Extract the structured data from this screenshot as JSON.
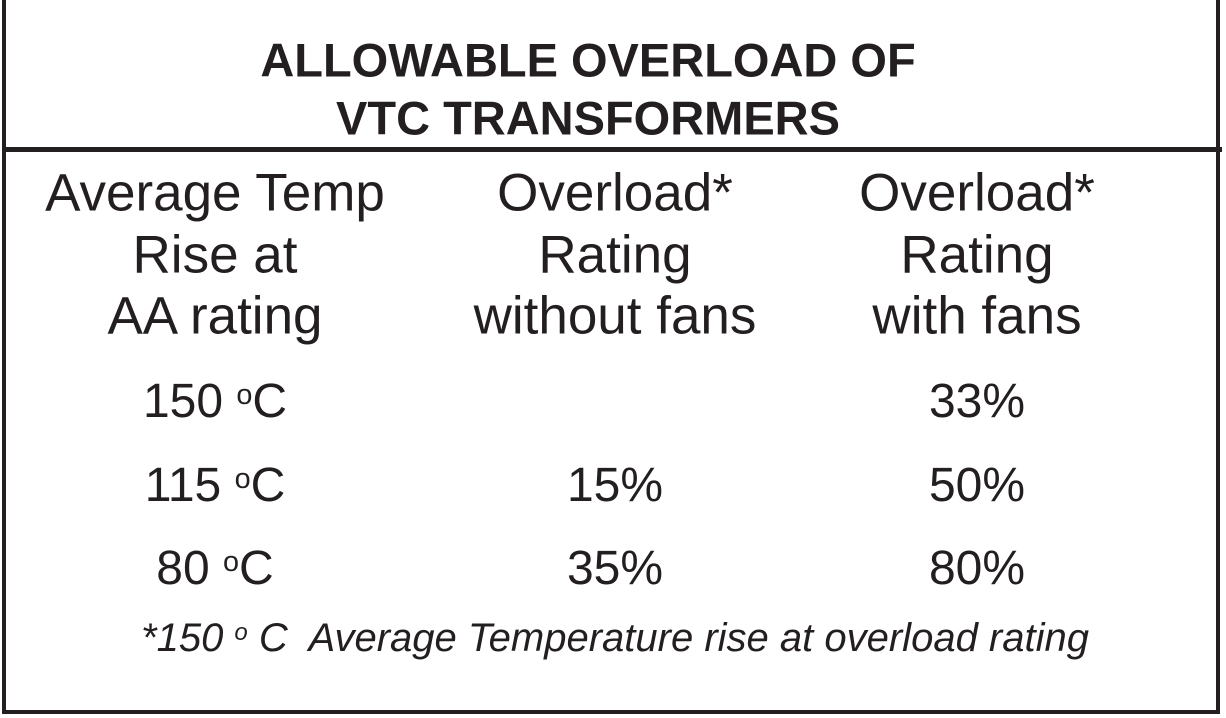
{
  "title": [
    "ALLOWABLE OVERLOAD OF",
    "VTC TRANSFORMERS"
  ],
  "columns": [
    [
      "Average Temp",
      "Rise at",
      "AA rating"
    ],
    [
      "Overload*",
      "Rating",
      "without fans"
    ],
    [
      "Overload*",
      "Rating",
      "with fans"
    ]
  ],
  "rows": [
    {
      "temp": "150",
      "unit_sup": "o",
      "unit": "C",
      "without_fans": "",
      "with_fans": "33%"
    },
    {
      "temp": "115",
      "unit_sup": "o",
      "unit": "C",
      "without_fans": "15%",
      "with_fans": "50%"
    },
    {
      "temp": "80",
      "unit_sup": "o",
      "unit": "C",
      "without_fans": "35%",
      "with_fans": "80%"
    }
  ],
  "footnote": {
    "prefix": "*150 ",
    "sup": "o",
    "text": " C  Average Temperature rise at overload rating"
  }
}
